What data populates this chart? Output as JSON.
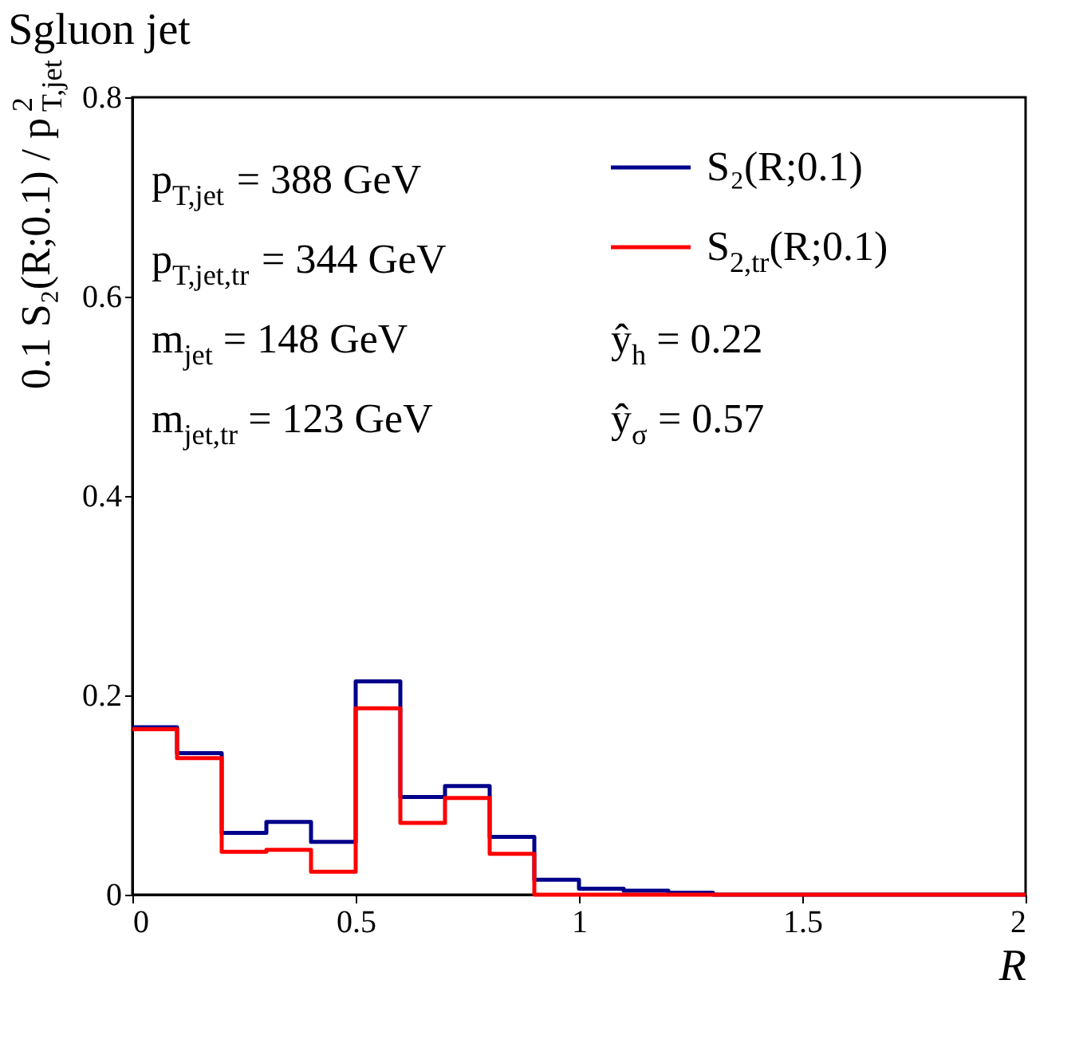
{
  "chart_data": {
    "type": "histogram",
    "title": "Sgluon jet",
    "xlabel": "R",
    "ylabel": "0.1 S₂(R;0.1) / p$^{2}$$_{T,jet}$",
    "bins": [
      0,
      0.1,
      0.2,
      0.3,
      0.4,
      0.5,
      0.6,
      0.7,
      0.8,
      0.9,
      1.0,
      1.1,
      1.2,
      1.3,
      1.4,
      1.5,
      1.6,
      1.7,
      1.8,
      1.9,
      2.0
    ],
    "series": [
      {
        "name": "S₂(R;0.1)",
        "color": "#00008b",
        "values": [
          0.168,
          0.142,
          0.062,
          0.073,
          0.053,
          0.214,
          0.098,
          0.109,
          0.058,
          0.015,
          0.006,
          0.004,
          0.002,
          0,
          0,
          0,
          0,
          0,
          0,
          0
        ]
      },
      {
        "name": "S$_{2,tr}$(R;0.1)",
        "color": "#ff0000",
        "values": [
          0.166,
          0.137,
          0.043,
          0.045,
          0.023,
          0.187,
          0.072,
          0.097,
          0.041,
          0,
          0,
          0,
          0,
          0,
          0,
          0,
          0,
          0,
          0,
          0
        ]
      }
    ],
    "annotations": [
      "p$_{T,jet}$ = 388 GeV",
      "p$_{T,jet,tr}$ = 344 GeV",
      "m$_{jet}$ = 148 GeV",
      "m$_{jet,tr}$ = 123 GeV",
      "ŷ$_{h}$ = 0.22",
      "ŷ$_{σ}$ = 0.57"
    ],
    "xlim": [
      0,
      2
    ],
    "xticks": [
      0,
      0.5,
      1,
      1.5,
      2
    ],
    "ylim": [
      0,
      0.8
    ],
    "yticks": [
      0,
      0.2,
      0.4,
      0.6,
      0.8
    ],
    "grid": false,
    "legend": "top right",
    "line_style": "solid"
  }
}
